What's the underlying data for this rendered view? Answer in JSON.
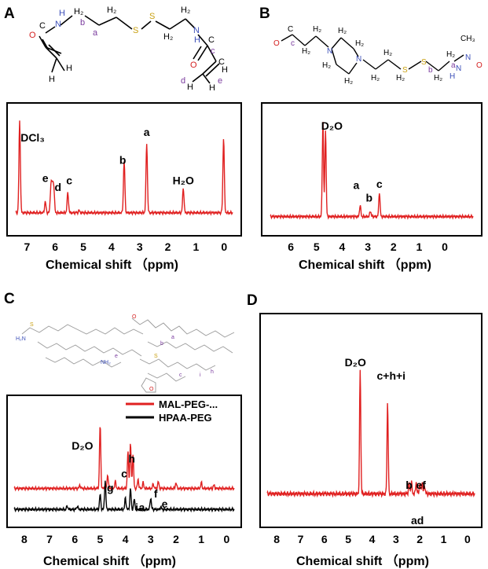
{
  "panels": {
    "A": {
      "letter": "A",
      "xlabel": "Chemical shift （ppm)"
    },
    "B": {
      "letter": "B",
      "xlabel": "Chemical shift （ppm)"
    },
    "C": {
      "letter": "C",
      "xlabel": "Chemical shift （ppm)"
    },
    "D": {
      "letter": "D",
      "xlabel": "Chemical shift （ppm)"
    }
  },
  "structures": {
    "A": {
      "atoms": [
        "O",
        "H",
        "N",
        "C",
        "H₂",
        "b",
        "H₂",
        "a",
        "S",
        "S",
        "H₂",
        "H₂",
        "H",
        "N",
        "C",
        "c",
        "O",
        "C",
        "H",
        "H",
        "d",
        "H",
        "e",
        "H",
        "H"
      ]
    },
    "B": {
      "atoms": [
        "O",
        "C",
        "c",
        "H₂",
        "H₂",
        "N",
        "H₂",
        "H₂",
        "H₂",
        "N",
        "H₂",
        "H₂",
        "H₂",
        "H₂",
        "S",
        "S",
        "H₂",
        "b",
        "H₂",
        "a",
        "H",
        "N",
        "CH₃",
        "N",
        "O"
      ]
    },
    "C": {
      "atoms": [
        "H₂N",
        "O",
        "S",
        "S",
        "NH₂",
        "O",
        "a",
        "b",
        "e",
        "c",
        "h",
        "i"
      ]
    }
  },
  "colors": {
    "red": "#e02020",
    "black": "#000000",
    "annot": "#7a3b9e",
    "n": "#3c4fb8",
    "o": "#d42020",
    "s": "#c9a010"
  },
  "chart_data": [
    {
      "type": "line",
      "panel": "A",
      "xlabel": "Chemical shift （ppm)",
      "xlim": [
        7.4,
        -0.3
      ],
      "xticks": [
        7,
        6,
        5,
        4,
        3,
        2,
        1,
        0
      ],
      "grid": false,
      "series": [
        {
          "color": "#e02020",
          "peaks": [
            [
              7.26,
              0.82
            ],
            [
              6.35,
              0.1
            ],
            [
              6.15,
              0.24
            ],
            [
              6.1,
              0.22
            ],
            [
              6.05,
              0.23
            ],
            [
              5.55,
              0.18
            ],
            [
              5.15,
              0.02
            ],
            [
              3.55,
              0.46
            ],
            [
              2.75,
              0.62
            ],
            [
              1.45,
              0.22
            ],
            [
              0.02,
              0.67
            ]
          ]
        }
      ],
      "annotations": [
        {
          "text": "DCl₃",
          "x": 6.8,
          "y": 0.72
        },
        {
          "text": "e",
          "x": 6.35,
          "y": 0.36
        },
        {
          "text": "d",
          "x": 5.9,
          "y": 0.28
        },
        {
          "text": "c",
          "x": 5.5,
          "y": 0.34
        },
        {
          "text": "b",
          "x": 3.6,
          "y": 0.52
        },
        {
          "text": "a",
          "x": 2.75,
          "y": 0.77
        },
        {
          "text": "H₂O",
          "x": 1.45,
          "y": 0.34
        }
      ]
    },
    {
      "type": "line",
      "panel": "B",
      "xlabel": "Chemical shift （ppm)",
      "xlim": [
        6.8,
        -1.1
      ],
      "xticks": [
        6,
        5,
        4,
        3,
        2,
        1,
        0
      ],
      "grid": false,
      "series": [
        {
          "color": "#e02020",
          "peaks": [
            [
              4.75,
              0.85
            ],
            [
              4.65,
              0.78
            ],
            [
              3.3,
              0.1
            ],
            [
              2.9,
              0.05
            ],
            [
              2.55,
              0.22
            ]
          ]
        }
      ],
      "annotations": [
        {
          "text": "D₂O",
          "x": 4.4,
          "y": 0.84
        },
        {
          "text": "a",
          "x": 3.45,
          "y": 0.31
        },
        {
          "text": "b",
          "x": 2.95,
          "y": 0.2
        },
        {
          "text": "c",
          "x": 2.55,
          "y": 0.32
        }
      ]
    },
    {
      "type": "line",
      "panel": "C",
      "xlabel": "Chemical shift （ppm)",
      "xlim": [
        8.4,
        -0.3
      ],
      "xticks": [
        8,
        7,
        6,
        5,
        4,
        3,
        2,
        1,
        0
      ],
      "grid": false,
      "legend_position": "top-right",
      "series": [
        {
          "name": "MAL-PEG-...",
          "color": "#e02020",
          "peaks": [
            [
              5.8,
              0.03
            ],
            [
              5.0,
              0.55
            ],
            [
              4.7,
              0.12
            ],
            [
              4.4,
              0.06
            ],
            [
              3.9,
              0.32
            ],
            [
              3.8,
              0.39
            ],
            [
              3.7,
              0.29
            ],
            [
              3.5,
              0.08
            ],
            [
              3.3,
              0.05
            ],
            [
              2.9,
              0.04
            ],
            [
              2.7,
              0.06
            ],
            [
              2.0,
              0.05
            ],
            [
              1.0,
              0.05
            ],
            [
              0.5,
              0.03
            ]
          ]
        },
        {
          "name": "HPAA-PEG",
          "color": "#000000",
          "peaks": [
            [
              6.3,
              0.03
            ],
            [
              5.9,
              0.03
            ],
            [
              5.0,
              0.13
            ],
            [
              4.8,
              0.25
            ],
            [
              4.0,
              0.1
            ],
            [
              3.8,
              0.18
            ],
            [
              3.65,
              0.09
            ],
            [
              3.0,
              0.1
            ],
            [
              2.6,
              0.02
            ]
          ]
        }
      ],
      "annotations": [
        {
          "text": "D₂O",
          "x": 5.7,
          "y": 0.58
        },
        {
          "text": "h",
          "x": 3.75,
          "y": 0.47
        },
        {
          "text": "c",
          "x": 4.05,
          "y": 0.34
        },
        {
          "text": "g",
          "x": 4.6,
          "y": 0.22
        },
        {
          "text": "f",
          "x": 2.8,
          "y": 0.17
        },
        {
          "text": "e",
          "x": 2.45,
          "y": 0.08
        },
        {
          "text": "i",
          "x": 3.55,
          "y": 0.05
        },
        {
          "text": "a",
          "x": 3.35,
          "y": 0.05
        }
      ]
    },
    {
      "type": "line",
      "panel": "D",
      "xlabel": "Chemical shift （ppm)",
      "xlim": [
        8.4,
        -0.3
      ],
      "xticks": [
        8,
        7,
        6,
        5,
        4,
        3,
        2,
        1,
        0
      ],
      "grid": false,
      "series": [
        {
          "color": "#e02020",
          "peaks": [
            [
              4.5,
              0.74
            ],
            [
              3.35,
              0.55
            ],
            [
              2.45,
              0.06
            ],
            [
              2.35,
              0.07
            ],
            [
              2.15,
              0.07
            ],
            [
              2.0,
              0.06
            ],
            [
              1.9,
              0.07
            ],
            [
              1.8,
              0.05
            ]
          ]
        }
      ],
      "annotations": [
        {
          "text": "D₂O",
          "x": 4.7,
          "y": 0.87
        },
        {
          "text": "c+h+i",
          "x": 3.2,
          "y": 0.79
        },
        {
          "text": "b",
          "x": 2.45,
          "y": 0.14
        },
        {
          "text": "ef",
          "x": 1.95,
          "y": 0.14
        },
        {
          "text": "ad",
          "x": 2.1,
          "y": -0.07
        }
      ]
    }
  ]
}
